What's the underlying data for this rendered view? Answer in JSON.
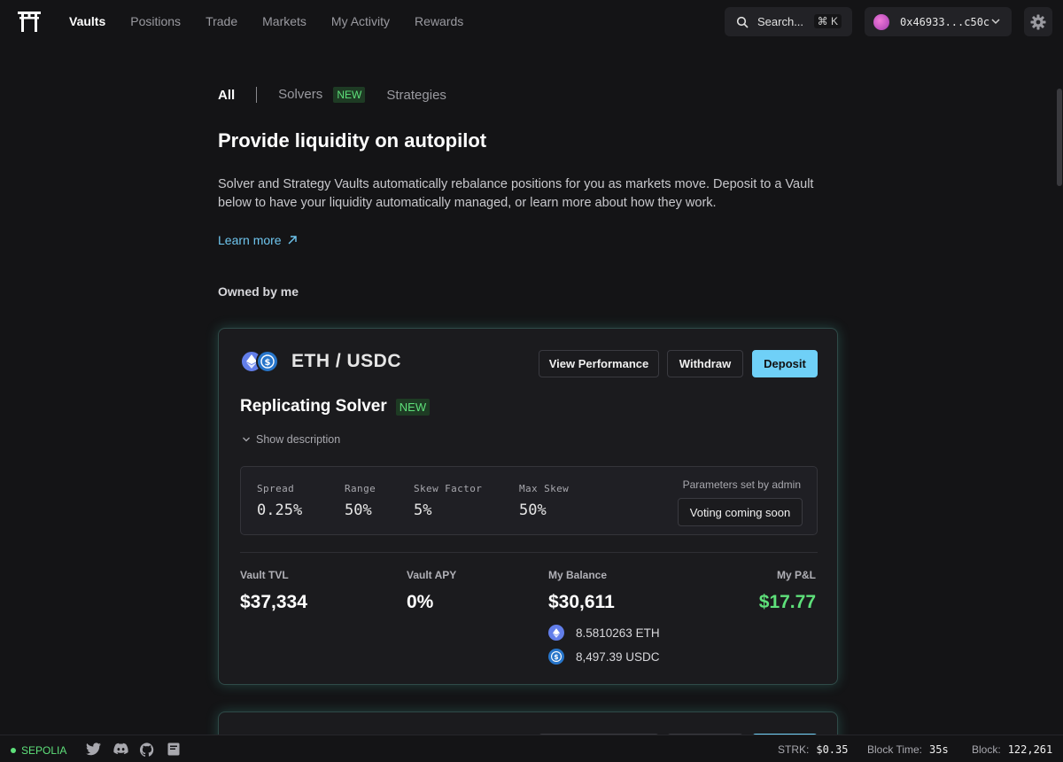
{
  "nav": {
    "items": [
      {
        "label": "Vaults",
        "active": true
      },
      {
        "label": "Positions",
        "active": false
      },
      {
        "label": "Trade",
        "active": false
      },
      {
        "label": "Markets",
        "active": false
      },
      {
        "label": "My Activity",
        "active": false
      },
      {
        "label": "Rewards",
        "active": false
      }
    ],
    "search_label": "Search...",
    "search_shortcut": "⌘ K",
    "wallet_address": "0x46933...c50c"
  },
  "tabs": {
    "all": "All",
    "solvers": "Solvers",
    "solvers_badge": "NEW",
    "strategies": "Strategies"
  },
  "page": {
    "title": "Provide liquidity on autopilot",
    "intro": "Solver and Strategy Vaults automatically rebalance positions for you as markets move. Deposit to a Vault below to have your liquidity automatically managed, or learn more about how they work.",
    "learn_more": "Learn more",
    "section": "Owned by me"
  },
  "vault": {
    "pair": "ETH / USDC",
    "buttons": {
      "performance": "View Performance",
      "withdraw": "Withdraw",
      "deposit": "Deposit"
    },
    "name": "Replicating Solver",
    "name_badge": "NEW",
    "show_description": "Show description",
    "params": [
      {
        "label": "Spread",
        "value": "0.25%"
      },
      {
        "label": "Range",
        "value": "50%"
      },
      {
        "label": "Skew Factor",
        "value": "5%"
      },
      {
        "label": "Max Skew",
        "value": "50%"
      }
    ],
    "admin_note": "Parameters set by admin",
    "voting": "Voting coming soon",
    "stats": {
      "tvl_label": "Vault TVL",
      "tvl": "$37,334",
      "apy_label": "Vault APY",
      "apy": "0%",
      "balance_label": "My Balance",
      "balance": "$30,611",
      "pnl_label": "My P&L",
      "pnl": "$17.77"
    },
    "holdings": {
      "eth": "8.5810263 ETH",
      "usdc": "8,497.39 USDC"
    }
  },
  "footer": {
    "network": "SEPOLIA",
    "strk_label": "STRK:",
    "strk": "$0.35",
    "block_time_label": "Block Time:",
    "block_time": "35s",
    "block_label": "Block:",
    "block": "122,261"
  },
  "colors": {
    "accent": "#6fd0f7",
    "positive": "#5ee07a",
    "card_glow": "#2f4a48"
  }
}
